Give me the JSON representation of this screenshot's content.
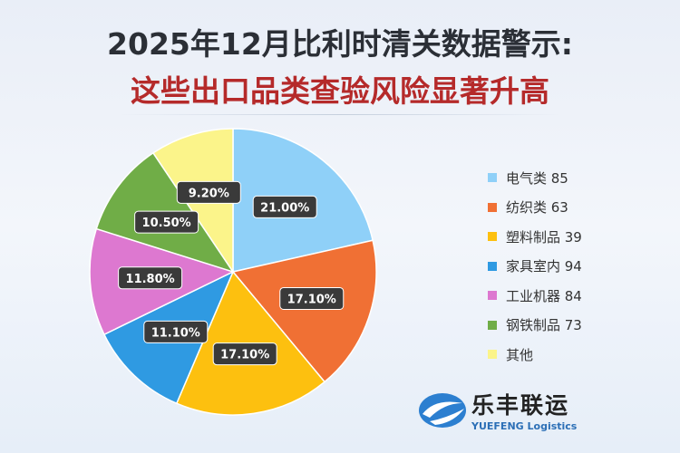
{
  "title_line1": "2025年12月比利时清关数据警示:",
  "title_line2": "这些出口品类查验风险显著升高",
  "chart_data": {
    "type": "pie",
    "start": "top",
    "direction": "clockwise",
    "slices": [
      {
        "label": "电气类 85",
        "percent": 21.0,
        "display": "21.00%",
        "color": "#8fd0f8"
      },
      {
        "label": "纺织类 63",
        "percent": 17.1,
        "display": "17.10%",
        "color": "#f07034"
      },
      {
        "label": "塑料制品 39",
        "percent": 17.1,
        "display": "17.10%",
        "color": "#fdc00f"
      },
      {
        "label": "家具室内 94",
        "percent": 11.1,
        "display": "11.10%",
        "color": "#2f9ae2"
      },
      {
        "label": "工业机器 84",
        "percent": 11.8,
        "display": "11.80%",
        "color": "#dd78d0"
      },
      {
        "label": "钢铁制品 73",
        "percent": 10.5,
        "display": "10.50%",
        "color": "#70ad47"
      },
      {
        "label": "其他",
        "percent": 9.2,
        "display": "9.20%",
        "color": "#fbf48a"
      }
    ],
    "legend_position": "right"
  },
  "logo": {
    "name_cn": "乐丰联运",
    "name_en": "YUEFENG Logistics",
    "color": "#2c6fb6"
  }
}
